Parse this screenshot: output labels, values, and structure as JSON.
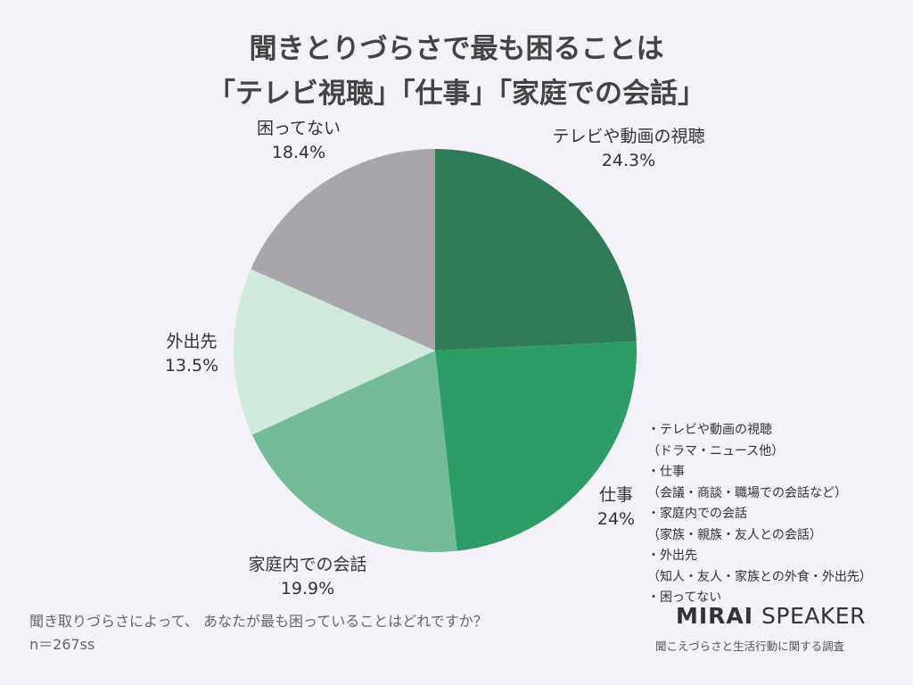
{
  "title": {
    "line1": "聞きとりづらさで最も困ることは",
    "line2": "「テレビ視聴」「仕事」「家庭での会話」"
  },
  "chart_data": {
    "type": "pie",
    "title": "聞きとりづらさで最も困ることは「テレビ視聴」「仕事」「家庭での会話」",
    "slices": [
      {
        "label": "テレビや動画の視聴",
        "value": 24.3,
        "display": "24.3%",
        "color": "#2f7b58"
      },
      {
        "label": "仕事",
        "value": 24.0,
        "display": "24%",
        "color": "#2e9c66"
      },
      {
        "label": "家庭内での会話",
        "value": 19.9,
        "display": "19.9%",
        "color": "#74bb99"
      },
      {
        "label": "外出先",
        "value": 13.5,
        "display": "13.5%",
        "color": "#d0e9dc"
      },
      {
        "label": "困ってない",
        "value": 18.4,
        "display": "18.4%",
        "color": "#a8a5ab"
      }
    ]
  },
  "notes": [
    "・テレビや動画の視聴",
    "（ドラマ・ニュース他）",
    "・仕事",
    "（会議・商談・職場での会話など）",
    "・家庭内での会話",
    "（家族・親族・友人との会話）",
    "・外出先",
    "（知人・友人・家族との外食・外出先）",
    "・困ってない"
  ],
  "footer": {
    "question": "聞き取りづらさによって、 あなたが最も困っていることはどれですか？",
    "sample": "n＝267ss",
    "brand_bold": "MIRAI",
    "brand_light": "SPEAKER",
    "survey": "聞こえづらさと生活行動に関する調査"
  }
}
